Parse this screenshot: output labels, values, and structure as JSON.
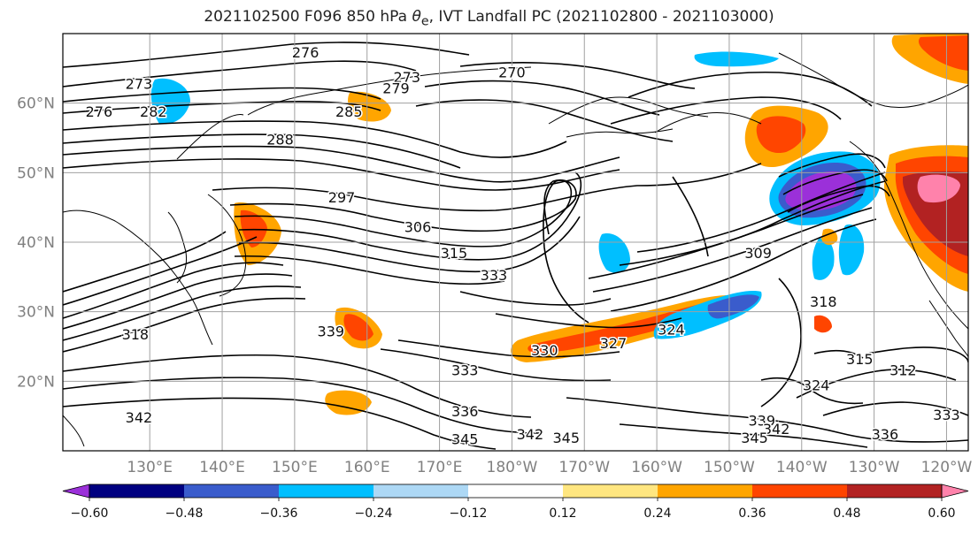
{
  "title": {
    "prefix": "2021102500 F096 850 hPa ",
    "symbol": "θ",
    "subscript": "e",
    "suffix": ", IVT Landfall PC (2021102800 - 2021103000)"
  },
  "map": {
    "projection": "PlateCarree",
    "extent": {
      "lon_min": 118,
      "lon_max": 243,
      "lat_min": 10,
      "lat_max": 70
    },
    "lon_ticks": [
      {
        "lon": 130,
        "label": "130°E"
      },
      {
        "lon": 140,
        "label": "140°E"
      },
      {
        "lon": 150,
        "label": "150°E"
      },
      {
        "lon": 160,
        "label": "160°E"
      },
      {
        "lon": 170,
        "label": "170°E"
      },
      {
        "lon": 180,
        "label": "180°W"
      },
      {
        "lon": 190,
        "label": "170°W"
      },
      {
        "lon": 200,
        "label": "160°W"
      },
      {
        "lon": 210,
        "label": "150°W"
      },
      {
        "lon": 220,
        "label": "140°W"
      },
      {
        "lon": 230,
        "label": "130°W"
      },
      {
        "lon": 240,
        "label": "120°W"
      }
    ],
    "lat_ticks": [
      {
        "lat": 20,
        "label": "20°N"
      },
      {
        "lat": 30,
        "label": "30°N"
      },
      {
        "lat": 40,
        "label": "40°N"
      },
      {
        "lat": 50,
        "label": "50°N"
      },
      {
        "lat": 60,
        "label": "60°N"
      }
    ],
    "grid_color": "#a0a0a0",
    "contour_labels": [
      {
        "text": "276",
        "lon": 151.5,
        "lat": 67.3
      },
      {
        "text": "273",
        "lon": 165.5,
        "lat": 63.8
      },
      {
        "text": "270",
        "lon": 180,
        "lat": 64.5
      },
      {
        "text": "279",
        "lon": 164,
        "lat": 62.2
      },
      {
        "text": "285",
        "lon": 157.5,
        "lat": 58.8
      },
      {
        "text": "273",
        "lon": 128.5,
        "lat": 62.8
      },
      {
        "text": "276",
        "lon": 123,
        "lat": 58.8
      },
      {
        "text": "282",
        "lon": 130.5,
        "lat": 58.8
      },
      {
        "text": "288",
        "lon": 148,
        "lat": 54.8
      },
      {
        "text": "297",
        "lon": 156.5,
        "lat": 46.5
      },
      {
        "text": "306",
        "lon": 167,
        "lat": 42.2
      },
      {
        "text": "315",
        "lon": 172,
        "lat": 38.5
      },
      {
        "text": "333",
        "lon": 177.5,
        "lat": 35.3
      },
      {
        "text": "309",
        "lon": 214,
        "lat": 38.5
      },
      {
        "text": "318",
        "lon": 128,
        "lat": 26.8
      },
      {
        "text": "339",
        "lon": 155,
        "lat": 27.2
      },
      {
        "text": "330",
        "lon": 184.5,
        "lat": 24.5
      },
      {
        "text": "327",
        "lon": 194,
        "lat": 25.5
      },
      {
        "text": "324",
        "lon": 202,
        "lat": 27.5
      },
      {
        "text": "333",
        "lon": 173.5,
        "lat": 21.6
      },
      {
        "text": "336",
        "lon": 173.5,
        "lat": 15.7
      },
      {
        "text": "342",
        "lon": 128.5,
        "lat": 14.8
      },
      {
        "text": "345",
        "lon": 173.5,
        "lat": 11.7
      },
      {
        "text": "342",
        "lon": 182.5,
        "lat": 12.4
      },
      {
        "text": "345",
        "lon": 187.5,
        "lat": 11.9
      },
      {
        "text": "339",
        "lon": 214.5,
        "lat": 14.4
      },
      {
        "text": "342",
        "lon": 216.5,
        "lat": 13.2
      },
      {
        "text": "345",
        "lon": 213.5,
        "lat": 11.9
      },
      {
        "text": "336",
        "lon": 231.5,
        "lat": 12.4
      },
      {
        "text": "333",
        "lon": 240,
        "lat": 15.2
      },
      {
        "text": "315",
        "lon": 228,
        "lat": 23.2
      },
      {
        "text": "312",
        "lon": 234,
        "lat": 21.6
      },
      {
        "text": "324",
        "lon": 222,
        "lat": 19.5
      },
      {
        "text": "318",
        "lon": 223,
        "lat": 31.5
      }
    ]
  },
  "colorbar": {
    "colors": [
      "#9b30d9",
      "#000080",
      "#3a5ccc",
      "#00bfff",
      "#add8f5",
      "#ffffff",
      "#ffe680",
      "#ffa500",
      "#ff4500",
      "#b22222",
      "#ff82ab"
    ],
    "boundaries": [
      -0.72,
      -0.6,
      -0.48,
      -0.36,
      -0.24,
      -0.12,
      0.12,
      0.24,
      0.36,
      0.48,
      0.6,
      0.72
    ],
    "ticks": [
      {
        "value": -0.6,
        "label": "−0.60"
      },
      {
        "value": -0.48,
        "label": "−0.48"
      },
      {
        "value": -0.36,
        "label": "−0.36"
      },
      {
        "value": -0.24,
        "label": "−0.24"
      },
      {
        "value": -0.12,
        "label": "−0.12"
      },
      {
        "value": 0.12,
        "label": "0.12"
      },
      {
        "value": 0.24,
        "label": "0.24"
      },
      {
        "value": 0.36,
        "label": "0.36"
      },
      {
        "value": 0.48,
        "label": "0.48"
      },
      {
        "value": 0.6,
        "label": "0.60"
      }
    ],
    "extend": "both"
  }
}
